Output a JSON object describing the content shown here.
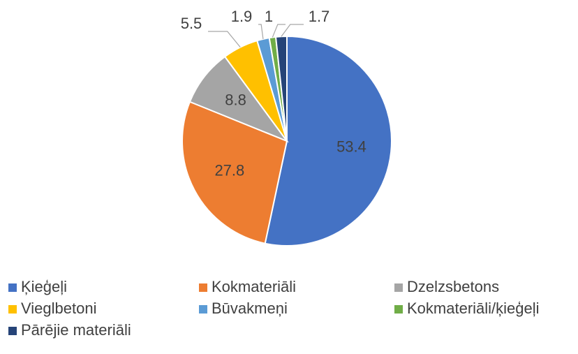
{
  "chart_data": {
    "type": "pie",
    "categories": [
      "Ķieģeļi",
      "Kokmateriāli",
      "Dzelzsbetons",
      "Vieglbetoni",
      "Būvakmeņi",
      "Kokmateriāli/ķieģeļi",
      "Pārējie materiāli"
    ],
    "values": [
      53.4,
      27.8,
      8.8,
      5.5,
      1.9,
      1,
      1.7
    ],
    "colors": [
      "#4472c4",
      "#ed7d31",
      "#a5a5a5",
      "#ffc000",
      "#5b9bd5",
      "#70ad47",
      "#264478"
    ],
    "legend": "bottom"
  }
}
